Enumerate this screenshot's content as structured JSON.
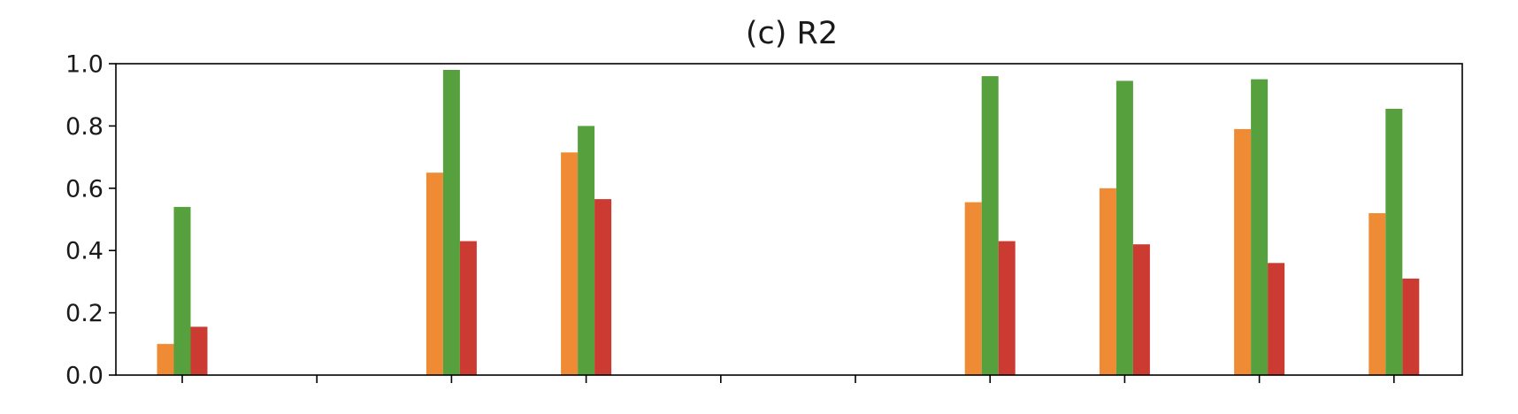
{
  "chart_data": {
    "type": "bar",
    "title": "(c) R2",
    "xlabel": "",
    "ylabel": "",
    "ylim": [
      0,
      1.0
    ],
    "yticks": [
      0.0,
      0.2,
      0.4,
      0.6,
      0.8,
      1.0
    ],
    "ytick_labels": [
      "0.0",
      "0.2",
      "0.4",
      "0.6",
      "0.8",
      "1.0"
    ],
    "num_groups": 10,
    "tick_labels": [
      "",
      "",
      "",
      "",
      "",
      "",
      "",
      "",
      "",
      ""
    ],
    "grid": false,
    "legend": null,
    "series": [
      {
        "color": "#ef8b34",
        "values": [
          0.1,
          null,
          0.65,
          0.715,
          null,
          null,
          0.555,
          0.6,
          0.79,
          0.52
        ]
      },
      {
        "color": "#56a03d",
        "values": [
          0.54,
          null,
          0.98,
          0.8,
          null,
          null,
          0.96,
          0.945,
          0.95,
          0.855
        ]
      },
      {
        "color": "#cb3b31",
        "values": [
          0.155,
          null,
          0.43,
          0.565,
          null,
          null,
          0.43,
          0.42,
          0.36,
          0.31
        ]
      }
    ]
  }
}
